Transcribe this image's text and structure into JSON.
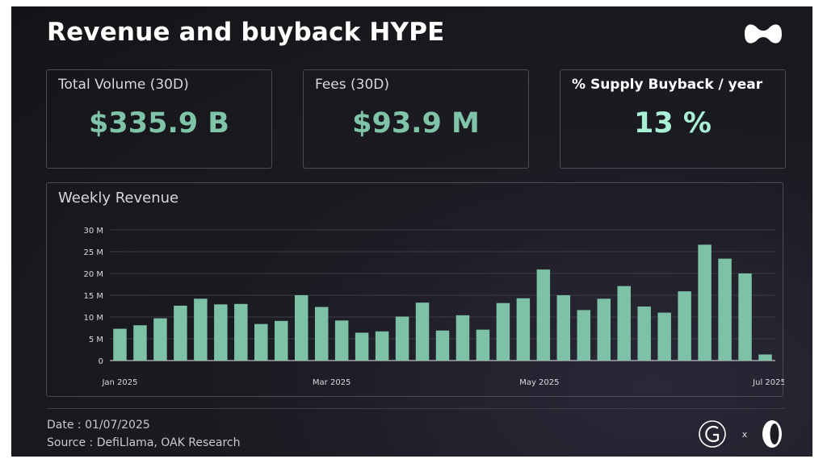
{
  "title": "Revenue and buyback HYPE",
  "cards": [
    {
      "label": "Total Volume (30D)",
      "value": "$335.9 B"
    },
    {
      "label": "Fees (30D)",
      "value": "$93.9 M"
    },
    {
      "label": "% Supply Buyback / year",
      "value": "13 %"
    }
  ],
  "colors": {
    "bar": "#7dc1a6",
    "value": "#7fc4a9",
    "value_highlight": "#a9f0d6",
    "background": "#18181d"
  },
  "chart_data": {
    "type": "bar",
    "title": "Weekly Revenue",
    "xlabel": "",
    "ylabel": "",
    "ylim": [
      0,
      30
    ],
    "y_unit": "M",
    "yticks": [
      0,
      5,
      10,
      15,
      20,
      25,
      30
    ],
    "ytick_labels": [
      "0",
      "5 M",
      "10 M",
      "15 M",
      "20 M",
      "25 M",
      "30 M"
    ],
    "xtick_labels": [
      {
        "label": "Jan 2025",
        "at_index": 0
      },
      {
        "label": "Mar 2025",
        "at_index": 10.5
      },
      {
        "label": "May 2025",
        "at_index": 20.8
      },
      {
        "label": "Jul 2025",
        "at_index": 32.2
      }
    ],
    "grid": true,
    "values": [
      7.3,
      8.1,
      9.7,
      12.6,
      14.2,
      12.9,
      13.0,
      8.4,
      9.1,
      15.0,
      12.3,
      9.2,
      6.4,
      6.7,
      10.1,
      13.3,
      6.9,
      10.4,
      7.1,
      13.2,
      14.3,
      20.9,
      15.0,
      11.6,
      14.2,
      17.1,
      12.4,
      11.0,
      15.9,
      26.6,
      23.4,
      20.0,
      1.4
    ]
  },
  "footer": {
    "date": "Date : 01/07/2025",
    "source": "Source : DefiLlama, OAK Research",
    "separator": "x"
  }
}
